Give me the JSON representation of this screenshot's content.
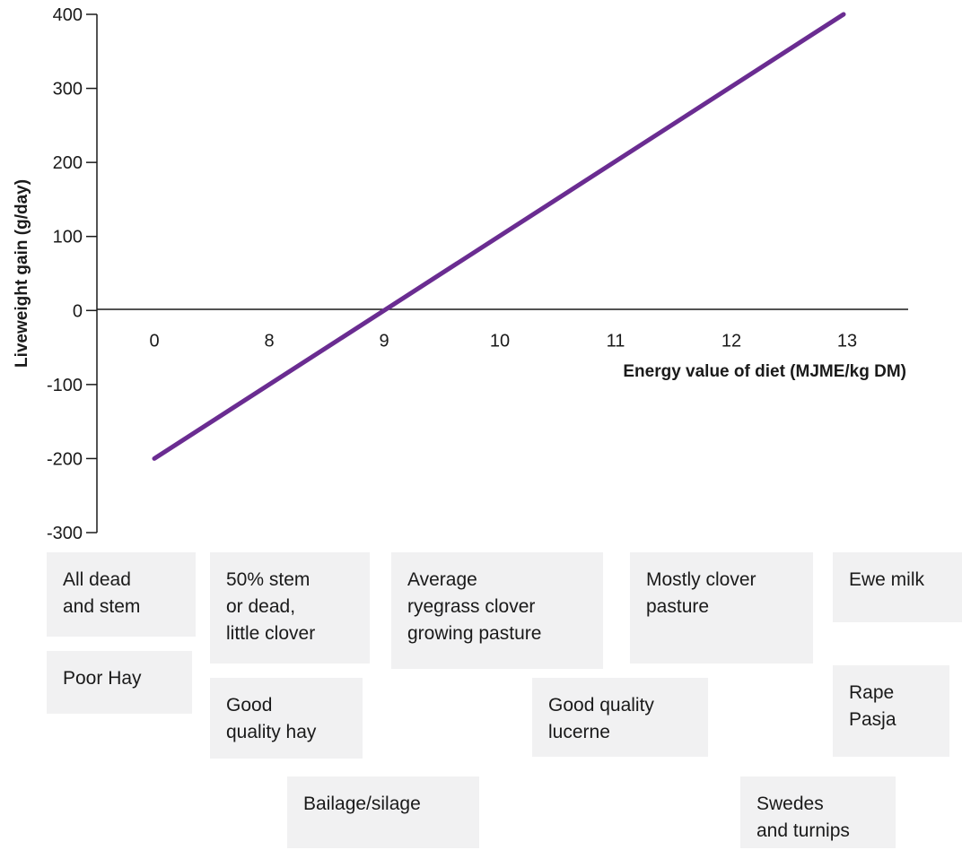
{
  "chart_data": {
    "type": "line",
    "xlabel": "Energy value of diet (MJME/kg DM)",
    "ylabel": "Liveweight gain (g/day)",
    "x_categories": [
      "0",
      "8",
      "9",
      "10",
      "11",
      "12",
      "13"
    ],
    "y_ticks": [
      "400",
      "300",
      "200",
      "100",
      "0",
      "-100",
      "-200",
      "-300"
    ],
    "ylim": [
      -300,
      400
    ],
    "grid": false,
    "series": [
      {
        "points": [
          {
            "x": 7,
            "y": -200
          },
          {
            "x": 13,
            "y": 400
          }
        ]
      }
    ],
    "line_color": "#6a2c91"
  },
  "feed_boxes": [
    {
      "label": "All dead\nand stem"
    },
    {
      "label": "Poor Hay"
    },
    {
      "label": "50% stem\nor dead,\nlittle clover"
    },
    {
      "label": "Good\nquality hay"
    },
    {
      "label": "Bailage/silage"
    },
    {
      "label": "Average\nryegrass clover\ngrowing pasture"
    },
    {
      "label": "Good quality\nlucerne"
    },
    {
      "label": "Mostly clover\npasture"
    },
    {
      "label": "Swedes\nand turnips"
    },
    {
      "label": "Ewe milk"
    },
    {
      "label": "Rape\nPasja"
    }
  ]
}
